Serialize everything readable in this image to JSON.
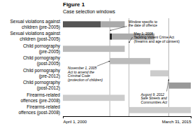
{
  "chart_data": {
    "type": "gantt",
    "orientation": "horizontal",
    "title": "Figure 1",
    "subtitle": "Case selection windows",
    "xlim": [
      2000.25,
      2015.25
    ],
    "xticks": [
      {
        "value": 2000.25,
        "label": "April 1, 2000"
      },
      {
        "value": 2015.25,
        "label": "March 31, 2015"
      }
    ],
    "rows": [
      {
        "label": "Sexual violations against\nchildren (pre-2005)",
        "bars": [
          {
            "start": 2000.25,
            "end": 2004.7,
            "color": "#555555"
          },
          {
            "start": 2004.7,
            "end": 2007.5,
            "color": "#aaaaaa"
          }
        ]
      },
      {
        "label": "Sexual violations against\nchildren (post-2005)",
        "bars": [
          {
            "start": 2005.75,
            "end": 2006.0,
            "color": "#222222"
          },
          {
            "start": 2006.0,
            "end": 2011.0,
            "color": "#aaaaaa"
          }
        ]
      },
      {
        "label": "Child pornography\n(pre-2005)",
        "bars": [
          {
            "start": 2000.25,
            "end": 2007.5,
            "color": "#bbbbbb"
          }
        ]
      },
      {
        "label": "Child pornography\n(post-2005)",
        "bars": [
          {
            "start": 2005.75,
            "end": 2010.5,
            "color": "#bbbbbb"
          }
        ]
      },
      {
        "label": "Child pornography\n(pre-2012)",
        "bars": [
          {
            "start": 2010.5,
            "end": 2012.67,
            "color": "#cccccc"
          }
        ]
      },
      {
        "label": "Child pornography\n(post-2012)",
        "bars": [
          {
            "start": 2012.67,
            "end": 2015.25,
            "color": "#999999"
          }
        ]
      },
      {
        "label": "Firearms-related\noffences (pre-2008)",
        "bars": [
          {
            "start": 2000.25,
            "end": 2007.5,
            "color": "#cccccc"
          }
        ]
      },
      {
        "label": "Firearms-related\noffences (post-2008)",
        "bars": [
          {
            "start": 2008.0,
            "end": 2015.25,
            "color": "#cccccc"
          }
        ]
      }
    ],
    "vlines": [
      2005.75,
      2008.0,
      2012.67
    ],
    "annotations": [
      {
        "text": "Window specific to\nthe date of offence",
        "x": 2005.8
      },
      {
        "text": "May 1, 2008\nTackling Violent Crime Act\n(firearms and age of consent)",
        "x": 2008.0
      },
      {
        "text": "November 1, 2005\nAct to amend the\nCriminal Code\n(protection of children)",
        "x": 2005.75
      },
      {
        "text": "August 9, 2012\nSafe Streets and\nCommunities Act",
        "x": 2012.67
      }
    ]
  }
}
